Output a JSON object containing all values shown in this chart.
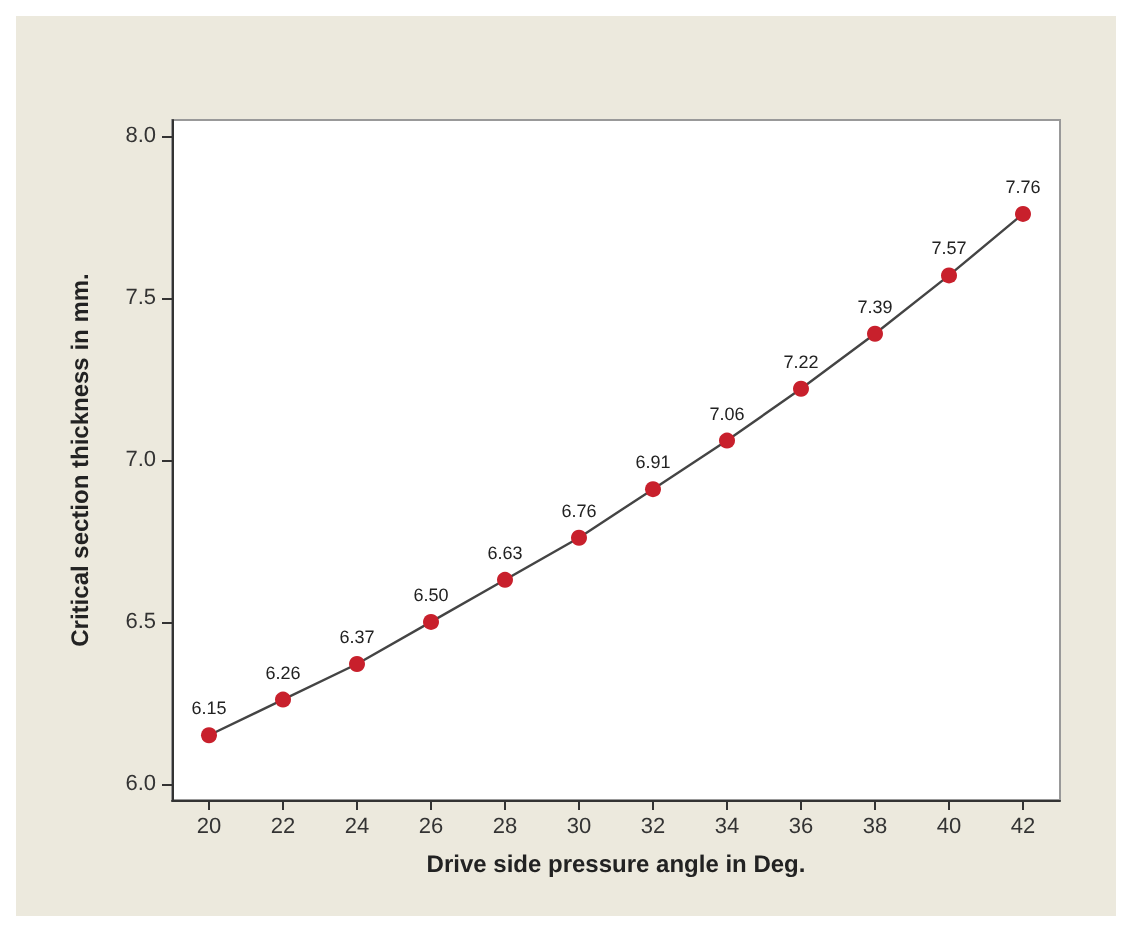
{
  "chart_data": {
    "type": "line",
    "xlabel": "Drive side pressure angle in Deg.",
    "ylabel": "Critical section thickness in mm.",
    "x": [
      20,
      22,
      24,
      26,
      28,
      30,
      32,
      34,
      36,
      38,
      40,
      42
    ],
    "series": [
      {
        "color": "#c8202c",
        "values": [
          6.15,
          6.26,
          6.37,
          6.5,
          6.63,
          6.76,
          6.91,
          7.06,
          7.22,
          7.39,
          7.57,
          7.76
        ],
        "value_labels": [
          "6.15",
          "6.26",
          "6.37",
          "6.50",
          "6.63",
          "6.76",
          "6.91",
          "7.06",
          "7.22",
          "7.39",
          "7.57",
          "7.76"
        ]
      }
    ],
    "xlim": [
      19,
      43
    ],
    "xticks": [
      20,
      22,
      24,
      26,
      28,
      30,
      32,
      34,
      36,
      38,
      40,
      42
    ],
    "ylim": [
      5.95,
      8.05
    ],
    "yticks": [
      {
        "value": 6,
        "label": "6.0"
      },
      {
        "value": 6.5,
        "label": "6.5"
      },
      {
        "value": 7,
        "label": "7.0"
      },
      {
        "value": 7.5,
        "label": "7.5"
      },
      {
        "value": 8,
        "label": "8.0"
      }
    ],
    "marker": "circle",
    "line_style": "solid",
    "grid": false
  }
}
